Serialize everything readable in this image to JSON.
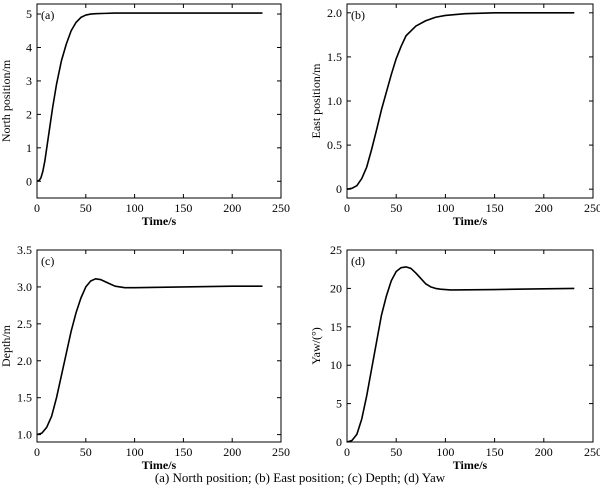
{
  "figure_caption": "(a) North position; (b) East position; (c) Depth; (d) Yaw",
  "chart_data": [
    {
      "type": "line",
      "panel_label": "(a)",
      "xlabel": "Time/s",
      "ylabel": "North position/m",
      "xlim": [
        0,
        250
      ],
      "ylim": [
        -0.5,
        5.3
      ],
      "xticks": [
        0,
        50,
        100,
        150,
        200,
        250
      ],
      "yticks": [
        0,
        1,
        2,
        3,
        4,
        5
      ],
      "grid": false,
      "series": [
        {
          "x": [
            0,
            2,
            4,
            6,
            8,
            10,
            13,
            16,
            20,
            25,
            30,
            35,
            40,
            45,
            50,
            55,
            60,
            70,
            80,
            100,
            150,
            200,
            231
          ],
          "y": [
            0,
            0.02,
            0.1,
            0.3,
            0.6,
            1.0,
            1.6,
            2.2,
            2.9,
            3.6,
            4.1,
            4.5,
            4.75,
            4.9,
            4.97,
            5.0,
            5.01,
            5.02,
            5.03,
            5.03,
            5.03,
            5.03,
            5.03
          ]
        }
      ]
    },
    {
      "type": "line",
      "panel_label": "(b)",
      "xlabel": "Time/s",
      "ylabel": "East position/m",
      "xlim": [
        0,
        250
      ],
      "ylim": [
        -0.1,
        2.1
      ],
      "xticks": [
        0,
        50,
        100,
        150,
        200,
        250
      ],
      "yticks": [
        0,
        0.5,
        1.0,
        1.5,
        2.0
      ],
      "ytick_labels": [
        "0",
        "0.5",
        "1.0",
        "1.5",
        "2.0"
      ],
      "grid": false,
      "series": [
        {
          "x": [
            0,
            5,
            10,
            15,
            20,
            25,
            30,
            35,
            40,
            45,
            50,
            55,
            60,
            70,
            80,
            90,
            100,
            120,
            150,
            200,
            231
          ],
          "y": [
            0,
            0.01,
            0.04,
            0.12,
            0.25,
            0.45,
            0.67,
            0.9,
            1.1,
            1.3,
            1.48,
            1.62,
            1.74,
            1.85,
            1.91,
            1.95,
            1.97,
            1.99,
            2.0,
            2.0,
            2.0
          ]
        }
      ]
    },
    {
      "type": "line",
      "panel_label": "(c)",
      "xlabel": "Time/s",
      "ylabel": "Depth/m",
      "xlim": [
        0,
        250
      ],
      "ylim": [
        0.9,
        3.5
      ],
      "xticks": [
        0,
        50,
        100,
        150,
        200,
        250
      ],
      "yticks": [
        1.0,
        1.5,
        2.0,
        2.5,
        3.0,
        3.5
      ],
      "ytick_labels": [
        "1.0",
        "1.5",
        "2.0",
        "2.5",
        "3.0",
        "3.5"
      ],
      "grid": false,
      "series": [
        {
          "x": [
            0,
            5,
            10,
            15,
            20,
            25,
            30,
            35,
            40,
            45,
            50,
            55,
            60,
            65,
            70,
            75,
            80,
            85,
            90,
            95,
            100,
            150,
            200,
            231
          ],
          "y": [
            1.0,
            1.02,
            1.1,
            1.25,
            1.5,
            1.8,
            2.1,
            2.4,
            2.65,
            2.85,
            3.0,
            3.08,
            3.11,
            3.1,
            3.07,
            3.04,
            3.01,
            3.0,
            2.99,
            2.99,
            2.99,
            3.0,
            3.01,
            3.01
          ]
        }
      ]
    },
    {
      "type": "line",
      "panel_label": "(d)",
      "xlabel": "Time/s",
      "ylabel": "Yaw/(°)",
      "xlim": [
        0,
        250
      ],
      "ylim": [
        0,
        25
      ],
      "xticks": [
        0,
        50,
        100,
        150,
        200,
        250
      ],
      "yticks": [
        0,
        5,
        10,
        15,
        20,
        25
      ],
      "grid": false,
      "series": [
        {
          "x": [
            0,
            5,
            10,
            15,
            20,
            25,
            30,
            35,
            40,
            45,
            50,
            55,
            60,
            65,
            70,
            75,
            80,
            85,
            90,
            95,
            100,
            105,
            110,
            150,
            200,
            231
          ],
          "y": [
            0,
            0.2,
            1.0,
            3.0,
            6.0,
            9.5,
            13.0,
            16.5,
            19.0,
            21.0,
            22.2,
            22.7,
            22.8,
            22.6,
            22.0,
            21.3,
            20.6,
            20.2,
            20.0,
            19.9,
            19.85,
            19.8,
            19.8,
            19.85,
            19.95,
            20.0
          ]
        }
      ]
    }
  ]
}
